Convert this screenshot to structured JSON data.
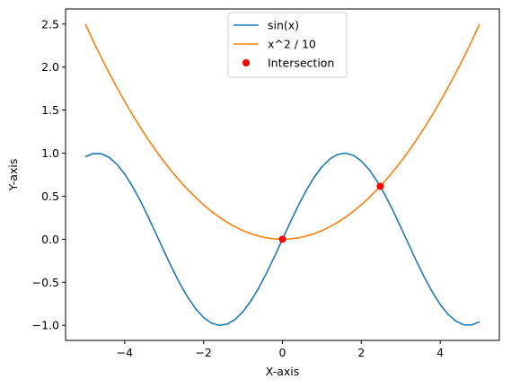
{
  "chart_data": {
    "type": "line",
    "title": "",
    "xlabel": "X-axis",
    "ylabel": "Y-axis",
    "xlim": [
      -5.5,
      5.5
    ],
    "ylim": [
      -1.175,
      2.675
    ],
    "xticks": [
      -4,
      -2,
      0,
      2,
      4
    ],
    "xtick_labels": [
      "−4",
      "−2",
      "0",
      "2",
      "4"
    ],
    "yticks": [
      -1.0,
      -0.5,
      0.0,
      0.5,
      1.0,
      1.5,
      2.0,
      2.5
    ],
    "ytick_labels": [
      "−1.0",
      "−0.5",
      "0.0",
      "0.5",
      "1.0",
      "1.5",
      "2.0",
      "2.5"
    ],
    "grid": false,
    "legend_position": "top-center",
    "series": [
      {
        "name": "sin(x)",
        "kind": "line",
        "color": "#1f77b4",
        "x": [
          -5.0,
          -4.8,
          -4.6,
          -4.4,
          -4.2,
          -4.0,
          -3.8,
          -3.6,
          -3.4,
          -3.2,
          -3.0,
          -2.8,
          -2.6,
          -2.4,
          -2.2,
          -2.0,
          -1.8,
          -1.6,
          -1.4,
          -1.2,
          -1.0,
          -0.8,
          -0.6,
          -0.4,
          -0.2,
          0.0,
          0.2,
          0.4,
          0.6,
          0.8,
          1.0,
          1.2,
          1.4,
          1.6,
          1.8,
          2.0,
          2.2,
          2.4,
          2.6,
          2.8,
          3.0,
          3.2,
          3.4,
          3.6,
          3.8,
          4.0,
          4.2,
          4.4,
          4.6,
          4.8,
          5.0
        ],
        "y": [
          0.959,
          0.996,
          0.994,
          0.952,
          0.872,
          0.757,
          0.612,
          0.443,
          0.256,
          0.058,
          -0.141,
          -0.335,
          -0.516,
          -0.675,
          -0.808,
          -0.909,
          -0.974,
          -1.0,
          -0.985,
          -0.932,
          -0.841,
          -0.717,
          -0.565,
          -0.389,
          -0.199,
          0.0,
          0.199,
          0.389,
          0.565,
          0.717,
          0.841,
          0.932,
          0.985,
          1.0,
          0.974,
          0.909,
          0.808,
          0.675,
          0.516,
          0.335,
          0.141,
          -0.058,
          -0.256,
          -0.443,
          -0.612,
          -0.757,
          -0.872,
          -0.952,
          -0.994,
          -0.996,
          -0.959
        ]
      },
      {
        "name": "x^2 / 10",
        "kind": "line",
        "color": "#ff7f0e",
        "x": [
          -5.0,
          -4.8,
          -4.6,
          -4.4,
          -4.2,
          -4.0,
          -3.8,
          -3.6,
          -3.4,
          -3.2,
          -3.0,
          -2.8,
          -2.6,
          -2.4,
          -2.2,
          -2.0,
          -1.8,
          -1.6,
          -1.4,
          -1.2,
          -1.0,
          -0.8,
          -0.6,
          -0.4,
          -0.2,
          0.0,
          0.2,
          0.4,
          0.6,
          0.8,
          1.0,
          1.2,
          1.4,
          1.6,
          1.8,
          2.0,
          2.2,
          2.4,
          2.6,
          2.8,
          3.0,
          3.2,
          3.4,
          3.6,
          3.8,
          4.0,
          4.2,
          4.4,
          4.6,
          4.8,
          5.0
        ],
        "y": [
          2.5,
          2.304,
          2.116,
          1.936,
          1.764,
          1.6,
          1.444,
          1.296,
          1.156,
          1.024,
          0.9,
          0.784,
          0.676,
          0.576,
          0.484,
          0.4,
          0.324,
          0.256,
          0.196,
          0.144,
          0.1,
          0.064,
          0.036,
          0.016,
          0.004,
          0.0,
          0.004,
          0.016,
          0.036,
          0.064,
          0.1,
          0.144,
          0.196,
          0.256,
          0.324,
          0.4,
          0.484,
          0.576,
          0.676,
          0.784,
          0.9,
          1.024,
          1.156,
          1.296,
          1.444,
          1.6,
          1.764,
          1.936,
          2.116,
          2.304,
          2.5
        ]
      },
      {
        "name": "Intersection",
        "kind": "scatter",
        "color": "#ff0000",
        "x": [
          0.0,
          2.48
        ],
        "y": [
          0.0,
          0.615
        ]
      }
    ]
  }
}
